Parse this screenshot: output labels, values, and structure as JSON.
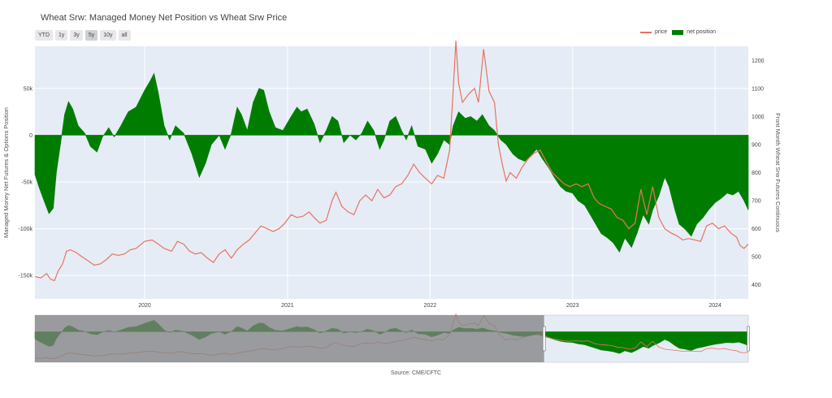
{
  "title": "Wheat Srw: Managed Money Net Position vs Wheat Srw Price",
  "range_buttons": [
    "YTD",
    "1y",
    "3y",
    "5y",
    "10y",
    "all"
  ],
  "active_button": "5y",
  "legend": {
    "price": "price",
    "net_position": "net position"
  },
  "source": "Source: CME/CFTC",
  "colors": {
    "price": "#e8735f",
    "net_position": "#007d00",
    "plot_bg": "#e5ecf6",
    "selection_mask": "#808080"
  },
  "chart_data": {
    "type": "area",
    "title": "Wheat Srw: Managed Money Net Position vs Wheat Srw Price",
    "x_ticks": [
      "2020",
      "2021",
      "2022",
      "2023",
      "2024"
    ],
    "y_left": {
      "label": "Managed Money Net Futures & Options Position",
      "ticks": [
        "50k",
        "0",
        "-50k",
        "-100k",
        "-150k"
      ],
      "range": [
        -175000,
        95000
      ]
    },
    "y_right": {
      "label": "Front Month Wheat Srw Futures Continuous",
      "ticks": [
        "1200",
        "1100",
        "1000",
        "900",
        "800",
        "700",
        "600",
        "500",
        "400"
      ],
      "range": [
        350,
        1250
      ]
    },
    "series": [
      {
        "name": "net position",
        "axis": "left",
        "points": [
          [
            "2019-03-26",
            -42000
          ],
          [
            "2019-04-05",
            -55000
          ],
          [
            "2019-04-20",
            -72000
          ],
          [
            "2019-05-01",
            -84000
          ],
          [
            "2019-05-12",
            -78000
          ],
          [
            "2019-05-20",
            -40000
          ],
          [
            "2019-06-01",
            -5000
          ],
          [
            "2019-06-10",
            22000
          ],
          [
            "2019-06-20",
            36000
          ],
          [
            "2019-07-01",
            28000
          ],
          [
            "2019-07-15",
            10000
          ],
          [
            "2019-08-01",
            2000
          ],
          [
            "2019-08-15",
            -12000
          ],
          [
            "2019-09-01",
            -18000
          ],
          [
            "2019-09-15",
            -2000
          ],
          [
            "2019-10-01",
            8000
          ],
          [
            "2019-10-15",
            -2000
          ],
          [
            "2019-11-01",
            10000
          ],
          [
            "2019-11-20",
            25000
          ],
          [
            "2019-12-10",
            30000
          ],
          [
            "2020-01-01",
            48000
          ],
          [
            "2020-01-15",
            58000
          ],
          [
            "2020-01-25",
            66000
          ],
          [
            "2020-02-05",
            45000
          ],
          [
            "2020-02-20",
            10000
          ],
          [
            "2020-03-05",
            -5000
          ],
          [
            "2020-03-20",
            10000
          ],
          [
            "2020-04-10",
            2000
          ],
          [
            "2020-05-01",
            -20000
          ],
          [
            "2020-05-20",
            -45000
          ],
          [
            "2020-06-05",
            -30000
          ],
          [
            "2020-06-20",
            -10000
          ],
          [
            "2020-07-10",
            0
          ],
          [
            "2020-07-25",
            -15000
          ],
          [
            "2020-08-10",
            2000
          ],
          [
            "2020-08-25",
            30000
          ],
          [
            "2020-09-05",
            22000
          ],
          [
            "2020-09-20",
            5000
          ],
          [
            "2020-10-05",
            35000
          ],
          [
            "2020-10-20",
            50000
          ],
          [
            "2020-11-01",
            48000
          ],
          [
            "2020-11-15",
            25000
          ],
          [
            "2020-12-01",
            8000
          ],
          [
            "2020-12-20",
            5000
          ],
          [
            "2021-01-10",
            20000
          ],
          [
            "2021-01-25",
            30000
          ],
          [
            "2021-02-05",
            25000
          ],
          [
            "2021-02-20",
            28000
          ],
          [
            "2021-03-10",
            12000
          ],
          [
            "2021-03-25",
            -8000
          ],
          [
            "2021-04-10",
            5000
          ],
          [
            "2021-04-25",
            20000
          ],
          [
            "2021-05-10",
            15000
          ],
          [
            "2021-05-25",
            -8000
          ],
          [
            "2021-06-10",
            0
          ],
          [
            "2021-06-25",
            -5000
          ],
          [
            "2021-07-10",
            2000
          ],
          [
            "2021-07-25",
            15000
          ],
          [
            "2021-08-10",
            5000
          ],
          [
            "2021-08-25",
            -15000
          ],
          [
            "2021-09-05",
            -5000
          ],
          [
            "2021-09-20",
            15000
          ],
          [
            "2021-10-05",
            20000
          ],
          [
            "2021-10-20",
            5000
          ],
          [
            "2021-11-01",
            -5000
          ],
          [
            "2021-11-15",
            10000
          ],
          [
            "2021-12-01",
            -12000
          ],
          [
            "2021-12-20",
            -15000
          ],
          [
            "2022-01-05",
            -30000
          ],
          [
            "2022-01-20",
            -20000
          ],
          [
            "2022-02-05",
            -5000
          ],
          [
            "2022-02-20",
            -10000
          ],
          [
            "2022-03-01",
            10000
          ],
          [
            "2022-03-15",
            25000
          ],
          [
            "2022-04-01",
            18000
          ],
          [
            "2022-04-15",
            20000
          ],
          [
            "2022-05-01",
            15000
          ],
          [
            "2022-05-15",
            22000
          ],
          [
            "2022-06-01",
            10000
          ],
          [
            "2022-06-15",
            5000
          ],
          [
            "2022-07-01",
            -5000
          ],
          [
            "2022-07-15",
            -10000
          ],
          [
            "2022-08-01",
            -20000
          ],
          [
            "2022-08-15",
            -25000
          ],
          [
            "2022-09-01",
            -28000
          ],
          [
            "2022-09-15",
            -22000
          ],
          [
            "2022-10-01",
            -15000
          ],
          [
            "2022-10-15",
            -25000
          ],
          [
            "2022-11-01",
            -35000
          ],
          [
            "2022-11-15",
            -45000
          ],
          [
            "2022-12-01",
            -55000
          ],
          [
            "2022-12-15",
            -60000
          ],
          [
            "2023-01-01",
            -62000
          ],
          [
            "2023-01-15",
            -70000
          ],
          [
            "2023-02-01",
            -75000
          ],
          [
            "2023-02-15",
            -85000
          ],
          [
            "2023-03-01",
            -95000
          ],
          [
            "2023-03-15",
            -105000
          ],
          [
            "2023-04-01",
            -110000
          ],
          [
            "2023-04-15",
            -115000
          ],
          [
            "2023-05-01",
            -125000
          ],
          [
            "2023-05-15",
            -110000
          ],
          [
            "2023-06-01",
            -120000
          ],
          [
            "2023-06-15",
            -105000
          ],
          [
            "2023-07-01",
            -85000
          ],
          [
            "2023-07-15",
            -95000
          ],
          [
            "2023-07-25",
            -80000
          ],
          [
            "2023-08-10",
            -65000
          ],
          [
            "2023-08-25",
            -45000
          ],
          [
            "2023-09-05",
            -55000
          ],
          [
            "2023-09-20",
            -80000
          ],
          [
            "2023-10-01",
            -95000
          ],
          [
            "2023-10-15",
            -100000
          ],
          [
            "2023-11-01",
            -108000
          ],
          [
            "2023-11-15",
            -95000
          ],
          [
            "2023-12-01",
            -88000
          ],
          [
            "2023-12-15",
            -80000
          ],
          [
            "2024-01-01",
            -72000
          ],
          [
            "2024-01-15",
            -68000
          ],
          [
            "2024-02-01",
            -62000
          ],
          [
            "2024-02-15",
            -64000
          ],
          [
            "2024-03-01",
            -60000
          ],
          [
            "2024-03-15",
            -70000
          ],
          [
            "2024-03-26",
            -80000
          ]
        ]
      },
      {
        "name": "price",
        "axis": "right",
        "points": [
          [
            "2019-03-26",
            430
          ],
          [
            "2019-04-10",
            425
          ],
          [
            "2019-04-25",
            440
          ],
          [
            "2019-05-05",
            420
          ],
          [
            "2019-05-15",
            415
          ],
          [
            "2019-05-25",
            450
          ],
          [
            "2019-06-05",
            475
          ],
          [
            "2019-06-15",
            520
          ],
          [
            "2019-06-25",
            525
          ],
          [
            "2019-07-10",
            515
          ],
          [
            "2019-07-25",
            500
          ],
          [
            "2019-08-10",
            485
          ],
          [
            "2019-08-25",
            470
          ],
          [
            "2019-09-10",
            475
          ],
          [
            "2019-09-25",
            490
          ],
          [
            "2019-10-10",
            510
          ],
          [
            "2019-10-25",
            505
          ],
          [
            "2019-11-10",
            510
          ],
          [
            "2019-11-25",
            525
          ],
          [
            "2019-12-10",
            530
          ],
          [
            "2020-01-01",
            555
          ],
          [
            "2020-01-20",
            560
          ],
          [
            "2020-02-05",
            545
          ],
          [
            "2020-02-20",
            530
          ],
          [
            "2020-03-10",
            520
          ],
          [
            "2020-03-25",
            555
          ],
          [
            "2020-04-10",
            545
          ],
          [
            "2020-04-25",
            520
          ],
          [
            "2020-05-10",
            510
          ],
          [
            "2020-05-25",
            515
          ],
          [
            "2020-06-10",
            495
          ],
          [
            "2020-06-25",
            480
          ],
          [
            "2020-07-10",
            510
          ],
          [
            "2020-07-25",
            525
          ],
          [
            "2020-08-10",
            495
          ],
          [
            "2020-08-25",
            525
          ],
          [
            "2020-09-10",
            545
          ],
          [
            "2020-09-25",
            560
          ],
          [
            "2020-10-10",
            585
          ],
          [
            "2020-10-25",
            610
          ],
          [
            "2020-11-10",
            600
          ],
          [
            "2020-11-25",
            590
          ],
          [
            "2020-12-10",
            600
          ],
          [
            "2020-12-25",
            620
          ],
          [
            "2021-01-10",
            650
          ],
          [
            "2021-01-25",
            640
          ],
          [
            "2021-02-10",
            645
          ],
          [
            "2021-02-25",
            660
          ],
          [
            "2021-03-10",
            640
          ],
          [
            "2021-03-25",
            620
          ],
          [
            "2021-04-10",
            630
          ],
          [
            "2021-04-25",
            700
          ],
          [
            "2021-05-05",
            730
          ],
          [
            "2021-05-20",
            680
          ],
          [
            "2021-06-05",
            660
          ],
          [
            "2021-06-20",
            650
          ],
          [
            "2021-07-05",
            700
          ],
          [
            "2021-07-20",
            720
          ],
          [
            "2021-08-05",
            700
          ],
          [
            "2021-08-20",
            740
          ],
          [
            "2021-09-05",
            710
          ],
          [
            "2021-09-20",
            720
          ],
          [
            "2021-10-05",
            750
          ],
          [
            "2021-10-20",
            760
          ],
          [
            "2021-11-05",
            790
          ],
          [
            "2021-11-20",
            830
          ],
          [
            "2021-12-05",
            800
          ],
          [
            "2021-12-20",
            780
          ],
          [
            "2022-01-05",
            760
          ],
          [
            "2022-01-20",
            790
          ],
          [
            "2022-02-05",
            780
          ],
          [
            "2022-02-20",
            880
          ],
          [
            "2022-03-01",
            1090
          ],
          [
            "2022-03-08",
            1270
          ],
          [
            "2022-03-15",
            1120
          ],
          [
            "2022-03-25",
            1050
          ],
          [
            "2022-04-10",
            1080
          ],
          [
            "2022-04-25",
            1100
          ],
          [
            "2022-05-05",
            1050
          ],
          [
            "2022-05-18",
            1240
          ],
          [
            "2022-06-01",
            1090
          ],
          [
            "2022-06-15",
            1050
          ],
          [
            "2022-06-25",
            900
          ],
          [
            "2022-07-05",
            830
          ],
          [
            "2022-07-15",
            770
          ],
          [
            "2022-07-25",
            800
          ],
          [
            "2022-08-10",
            780
          ],
          [
            "2022-08-25",
            820
          ],
          [
            "2022-09-10",
            850
          ],
          [
            "2022-09-25",
            870
          ],
          [
            "2022-10-10",
            880
          ],
          [
            "2022-10-25",
            840
          ],
          [
            "2022-11-10",
            800
          ],
          [
            "2022-11-25",
            780
          ],
          [
            "2022-12-10",
            760
          ],
          [
            "2022-12-25",
            750
          ],
          [
            "2023-01-10",
            760
          ],
          [
            "2023-01-25",
            750
          ],
          [
            "2023-02-10",
            760
          ],
          [
            "2023-02-25",
            710
          ],
          [
            "2023-03-10",
            690
          ],
          [
            "2023-03-25",
            680
          ],
          [
            "2023-04-10",
            670
          ],
          [
            "2023-04-25",
            640
          ],
          [
            "2023-05-10",
            630
          ],
          [
            "2023-05-25",
            600
          ],
          [
            "2023-06-10",
            620
          ],
          [
            "2023-06-25",
            740
          ],
          [
            "2023-07-10",
            650
          ],
          [
            "2023-07-25",
            750
          ],
          [
            "2023-08-10",
            640
          ],
          [
            "2023-08-25",
            600
          ],
          [
            "2023-09-10",
            585
          ],
          [
            "2023-09-25",
            575
          ],
          [
            "2023-10-10",
            560
          ],
          [
            "2023-10-25",
            565
          ],
          [
            "2023-11-10",
            560
          ],
          [
            "2023-11-25",
            555
          ],
          [
            "2023-12-10",
            610
          ],
          [
            "2023-12-25",
            620
          ],
          [
            "2024-01-10",
            600
          ],
          [
            "2024-01-25",
            610
          ],
          [
            "2024-02-10",
            585
          ],
          [
            "2024-02-25",
            570
          ],
          [
            "2024-03-05",
            540
          ],
          [
            "2024-03-15",
            530
          ],
          [
            "2024-03-26",
            545
          ]
        ]
      }
    ],
    "x_range": [
      "2019-03-26",
      "2024-03-26"
    ],
    "grid": true,
    "legend_position": "top-right",
    "range_slider": {
      "selected_start": "2022-10-20",
      "selected_end": "2024-03-26"
    }
  }
}
